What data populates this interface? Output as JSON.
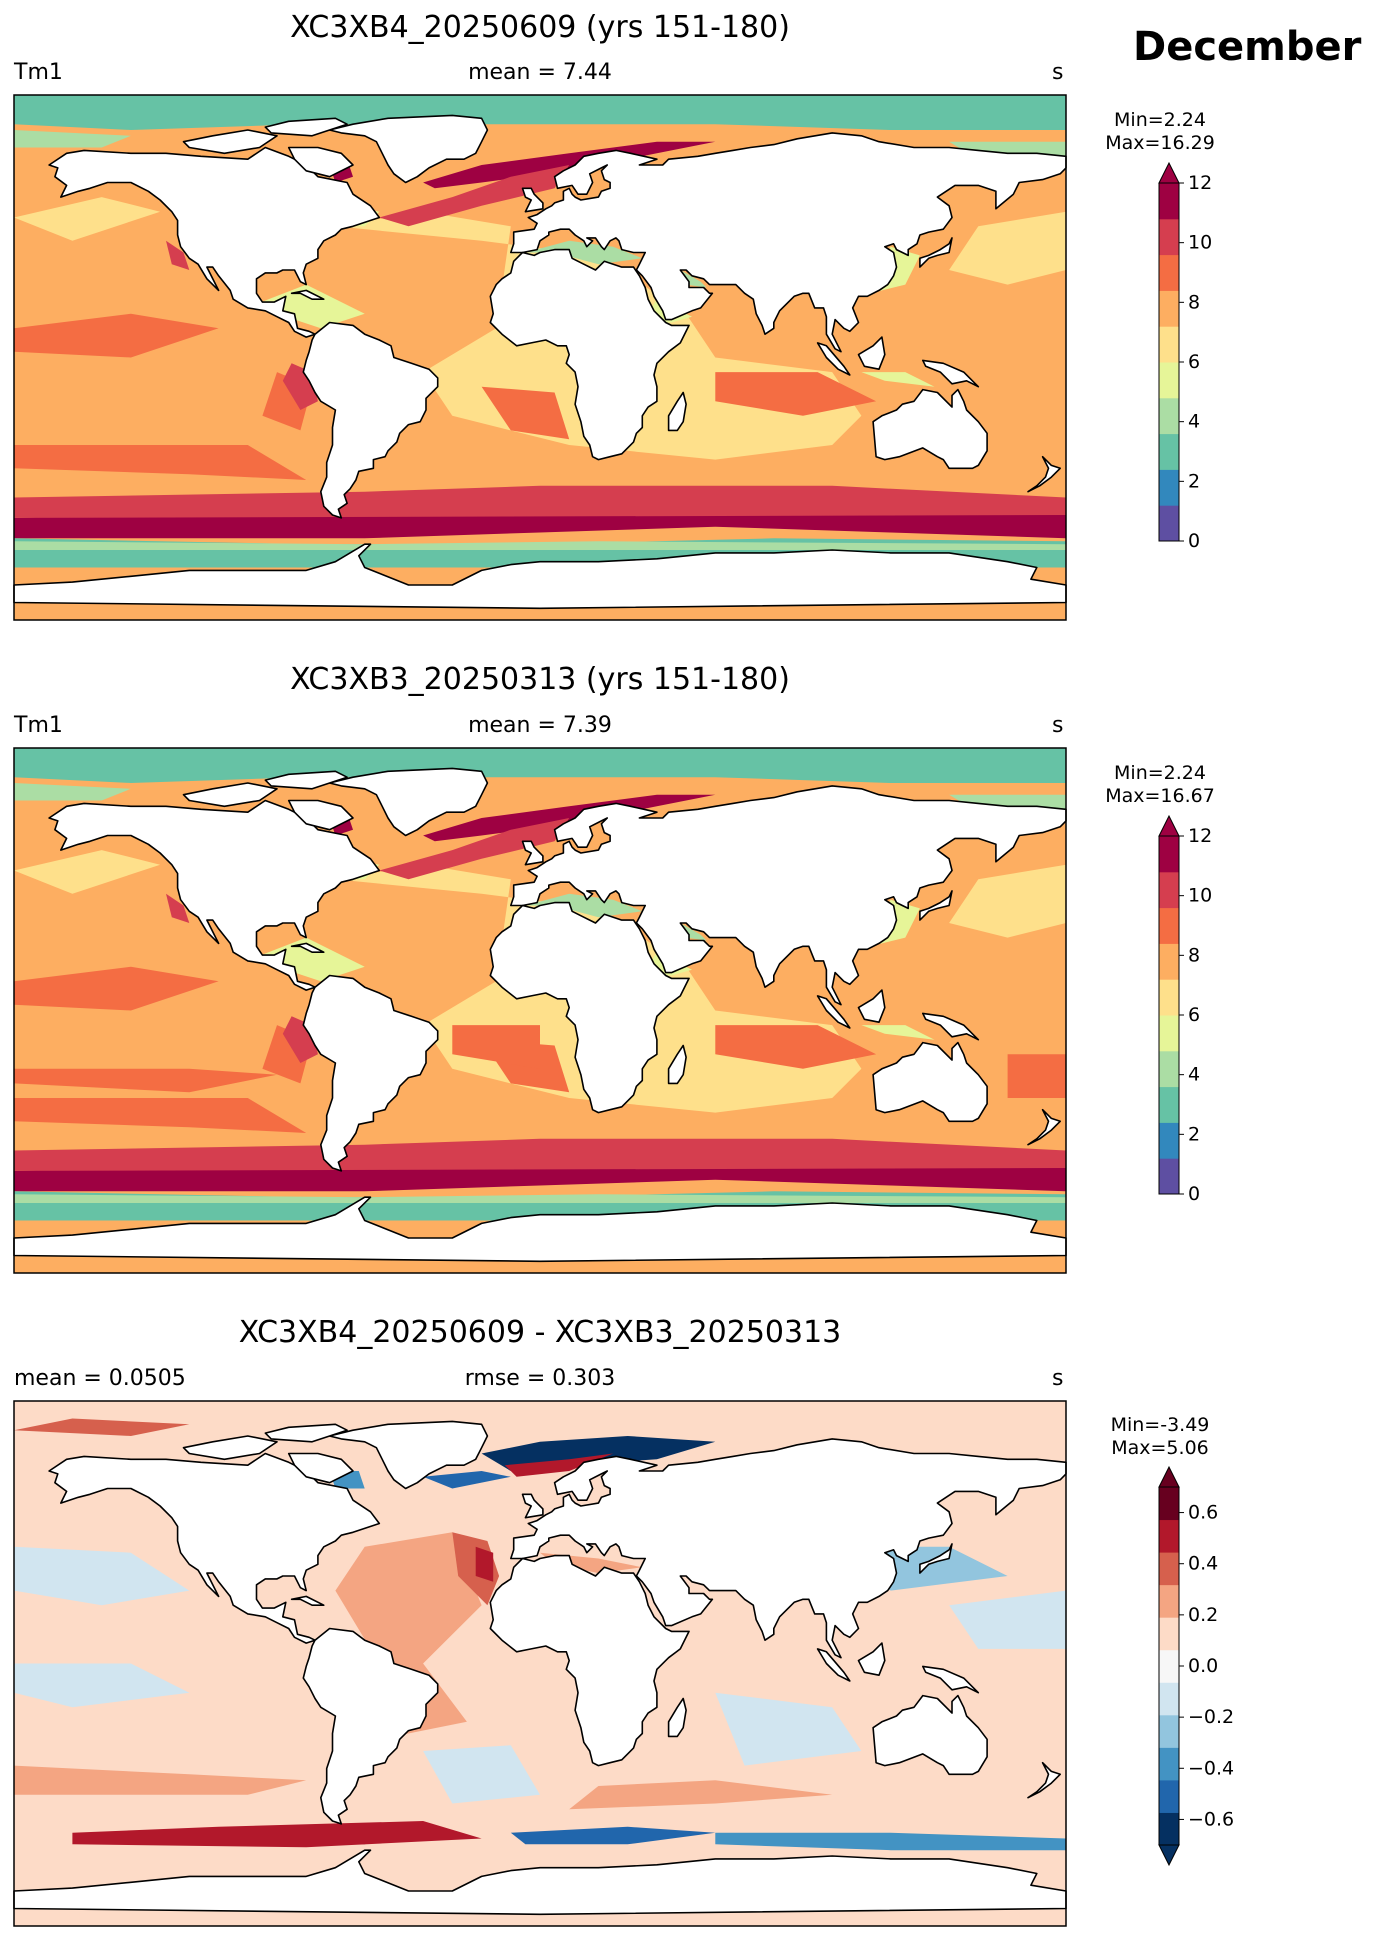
{
  "month": "December",
  "colors": {
    "tm1_levels": [
      "#5e4fa2",
      "#3288bd",
      "#66c2a5",
      "#abdda4",
      "#e6f598",
      "#fee08b",
      "#fdae61",
      "#f46d43",
      "#d53e4f",
      "#9e0142"
    ],
    "diff_levels": [
      "#053061",
      "#2166ac",
      "#4393c3",
      "#92c5de",
      "#d1e5f0",
      "#f7f7f7",
      "#fddbc7",
      "#f4a582",
      "#d6604d",
      "#b2182b",
      "#67001f"
    ],
    "land": "#ffffff",
    "coast": "#000000"
  },
  "panels": [
    {
      "title": "XC3XB4_20250609 (yrs 151-180)",
      "left_label": "Tm1",
      "center_label": "mean = 7.44",
      "right_label": "s",
      "min_text": "Min=2.24",
      "max_text": "Max=16.29",
      "colorbar": {
        "type": "sequential",
        "range": [
          0,
          12
        ],
        "ticks": [
          "0",
          "2",
          "4",
          "6",
          "8",
          "10",
          "12"
        ],
        "extend": "max"
      }
    },
    {
      "title": "XC3XB3_20250313 (yrs 151-180)",
      "left_label": "Tm1",
      "center_label": "mean = 7.39",
      "right_label": "s",
      "min_text": "Min=2.24",
      "max_text": "Max=16.67",
      "colorbar": {
        "type": "sequential",
        "range": [
          0,
          12
        ],
        "ticks": [
          "0",
          "2",
          "4",
          "6",
          "8",
          "10",
          "12"
        ],
        "extend": "max"
      }
    },
    {
      "title": "XC3XB4_20250609 - XC3XB3_20250313",
      "left_label": "mean = 0.0505",
      "center_label": "rmse = 0.303",
      "right_label": "s",
      "min_text": "Min=-3.49",
      "max_text": "Max=5.06",
      "colorbar": {
        "type": "diverging",
        "range": [
          -0.7,
          0.7
        ],
        "ticks": [
          "−0.6",
          "−0.4",
          "−0.2",
          "0.0",
          "0.2",
          "0.4",
          "0.6"
        ],
        "extend": "both"
      }
    }
  ]
}
